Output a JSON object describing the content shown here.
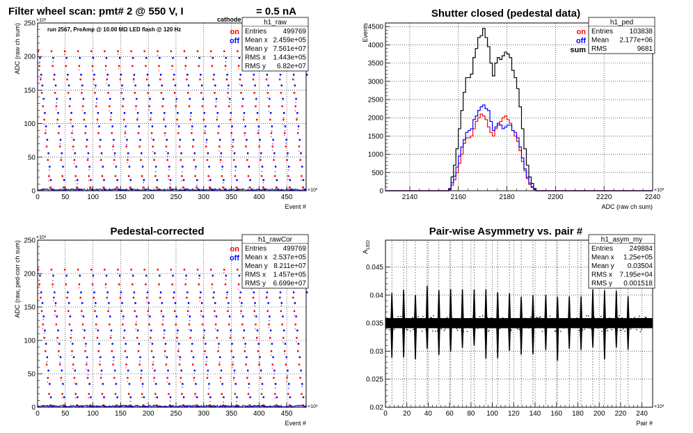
{
  "page_title": {
    "prefix": "Filter wheel scan: pmt#   2 @   550 V, I",
    "subscript": "cathode",
    "suffix": "= 0.5 nA"
  },
  "chart_data": [
    {
      "id": "raw",
      "type": "scatter",
      "title": "",
      "xlabel": "Event #",
      "ylabel": "ADC (raw ch sum)",
      "x_exponent": "×10³",
      "y_exponent": "×10³",
      "xlim": [
        0,
        485
      ],
      "ylim": [
        0,
        250
      ],
      "xticks": [
        0,
        50,
        100,
        150,
        200,
        250,
        300,
        350,
        400,
        450
      ],
      "yticks": [
        0,
        50,
        100,
        150,
        200,
        250
      ],
      "grid": true,
      "annotation": "run 2567, PreAmp @ 10.00 MΩ LED flash @  120 Hz",
      "legend": {
        "position": "top-right",
        "entries": [
          {
            "label": "on",
            "color": "#ff0000"
          },
          {
            "label": "off",
            "color": "#0000ff"
          }
        ]
      },
      "stats": {
        "name": "h1_raw",
        "rows": [
          [
            "Entries",
            "499769"
          ],
          [
            "Mean x",
            "2.459e+05"
          ],
          [
            "Mean y",
            "7.561e+07"
          ],
          [
            "RMS x",
            "1.443e+05"
          ],
          [
            "RMS y",
            "6.82e+07"
          ]
        ]
      },
      "series": [
        {
          "name": "on",
          "color": "#ff0000",
          "levels": [
            208,
            186,
            166,
            146,
            126,
            106,
            86,
            66,
            46,
            22,
            5
          ]
        },
        {
          "name": "off",
          "color": "#0000ff",
          "levels": [
            198,
            173,
            157,
            137,
            116,
            96,
            76,
            56,
            36,
            16,
            2
          ]
        }
      ],
      "scan_period": 24
    },
    {
      "id": "ped",
      "type": "histogram",
      "title": "Shutter closed (pedestal data)",
      "xlabel": "ADC (raw ch sum)",
      "ylabel": "Events",
      "x_exponent": "×10³",
      "xlim": [
        2130,
        2240
      ],
      "ylim": [
        0,
        4600
      ],
      "xticks": [
        2140,
        2160,
        2180,
        2200,
        2220,
        2240
      ],
      "yticks": [
        0,
        500,
        1000,
        1500,
        2000,
        2500,
        3000,
        3500,
        4000,
        4500
      ],
      "grid": true,
      "legend": {
        "position": "top-right",
        "entries": [
          {
            "label": "on",
            "color": "#ff0000"
          },
          {
            "label": "off",
            "color": "#0000ff"
          },
          {
            "label": "sum",
            "color": "#000000"
          }
        ]
      },
      "stats": {
        "name": "h1_ped",
        "rows": [
          [
            "Entries",
            "103838"
          ],
          [
            "Mean",
            "2.177e+06"
          ],
          [
            "RMS",
            "9681"
          ]
        ]
      },
      "bin_width": 1,
      "bin_start": 2156,
      "series": [
        {
          "name": "sum",
          "color": "#000000",
          "values": [
            60,
            380,
            700,
            1150,
            1700,
            2200,
            2700,
            3100,
            3100,
            3200,
            3650,
            3900,
            4200,
            4250,
            4450,
            4200,
            3950,
            3500,
            3150,
            3500,
            3650,
            3600,
            3700,
            3800,
            3750,
            3650,
            3300,
            3100,
            2800,
            2300,
            1700,
            1150,
            700,
            380,
            200,
            60,
            0
          ]
        },
        {
          "name": "on",
          "color": "#ff0000",
          "values": [
            25,
            150,
            300,
            500,
            750,
            1000,
            1300,
            1450,
            1450,
            1500,
            1700,
            1900,
            2000,
            2100,
            2050,
            1950,
            1750,
            1600,
            1500,
            1700,
            1800,
            1900,
            2000,
            2050,
            1950,
            1850,
            1650,
            1500,
            1350,
            1100,
            800,
            550,
            330,
            170,
            90,
            25,
            0
          ]
        },
        {
          "name": "off",
          "color": "#0000ff",
          "values": [
            35,
            220,
            400,
            650,
            950,
            1200,
            1400,
            1600,
            1650,
            1700,
            1950,
            2050,
            2200,
            2300,
            2350,
            2250,
            2200,
            1900,
            1650,
            1750,
            1850,
            1800,
            1700,
            1750,
            1800,
            1800,
            1650,
            1600,
            1450,
            1200,
            900,
            600,
            370,
            210,
            110,
            35,
            0
          ]
        }
      ]
    },
    {
      "id": "rawCor",
      "type": "scatter",
      "title": "Pedestal-corrected",
      "xlabel": "Event #",
      "ylabel": "ADC (raw, ped-corr ch sum)",
      "x_exponent": "×10³",
      "y_exponent": "×10³",
      "xlim": [
        0,
        485
      ],
      "ylim": [
        0,
        250
      ],
      "xticks": [
        0,
        50,
        100,
        150,
        200,
        250,
        300,
        350,
        400,
        450
      ],
      "yticks": [
        0,
        50,
        100,
        150,
        200,
        250
      ],
      "grid": true,
      "legend": {
        "position": "top-right",
        "entries": [
          {
            "label": "on",
            "color": "#ff0000"
          },
          {
            "label": "off",
            "color": "#0000ff"
          }
        ]
      },
      "stats": {
        "name": "h1_rawCor",
        "rows": [
          [
            "Entries",
            "499769"
          ],
          [
            "Mean x",
            "2.537e+05"
          ],
          [
            "Mean y",
            "8.211e+07"
          ],
          [
            "RMS x",
            "1.457e+05"
          ],
          [
            "RMS y",
            "6.699e+07"
          ]
        ]
      },
      "series": [
        {
          "name": "on",
          "color": "#ff0000",
          "levels": [
            206,
            184,
            164,
            144,
            124,
            104,
            84,
            64,
            44,
            20,
            3
          ]
        },
        {
          "name": "off",
          "color": "#0000ff",
          "levels": [
            197,
            172,
            156,
            136,
            115,
            95,
            75,
            55,
            35,
            15,
            1
          ]
        }
      ],
      "scan_period": 24
    },
    {
      "id": "asym",
      "type": "scatter",
      "title": "Pair-wise Asymmetry vs. pair #",
      "xlabel": "Pair #",
      "ylabel": "A",
      "ylabel_sub": "LED",
      "x_exponent": "×10³",
      "xlim": [
        0,
        250
      ],
      "ylim": [
        0.02,
        0.0498
      ],
      "xticks": [
        0,
        20,
        40,
        60,
        80,
        100,
        120,
        140,
        160,
        180,
        200,
        220,
        240
      ],
      "yticks": [
        0.02,
        0.025,
        0.03,
        0.035,
        0.04,
        0.045
      ],
      "grid": true,
      "stats": {
        "name": "h1_asym_my",
        "rows": [
          [
            "Entries",
            "249884"
          ],
          [
            "Mean x",
            "1.25e+05"
          ],
          [
            "Mean y",
            "0.03504"
          ],
          [
            "RMS x",
            "7.195e+04"
          ],
          [
            "RMS y",
            "0.001518"
          ]
        ]
      },
      "baseline": 0.035,
      "band_halfwidth": 0.0009,
      "spike_positions": [
        6,
        17,
        28,
        39,
        50,
        61,
        72,
        83,
        94,
        105,
        116,
        127,
        138,
        150,
        161,
        172,
        183,
        194,
        205,
        216,
        227
      ]
    }
  ]
}
